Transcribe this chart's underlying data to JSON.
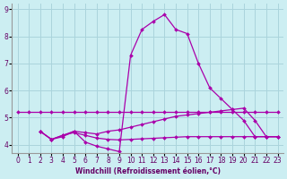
{
  "xlabel": "Windchill (Refroidissement éolien,°C)",
  "background_color": "#cceef2",
  "grid_color": "#aad4dc",
  "line_color": "#aa00aa",
  "xlim": [
    -0.5,
    23.5
  ],
  "ylim": [
    3.7,
    9.2
  ],
  "yticks": [
    4,
    5,
    6,
    7,
    8,
    9
  ],
  "xticks": [
    0,
    1,
    2,
    3,
    4,
    5,
    6,
    7,
    8,
    9,
    10,
    11,
    12,
    13,
    14,
    15,
    16,
    17,
    18,
    19,
    20,
    21,
    22,
    23
  ],
  "series": [
    {
      "x": [
        0,
        1,
        2,
        3,
        4,
        5,
        6,
        7,
        8,
        9,
        10,
        11,
        12,
        13,
        14,
        15,
        16,
        17,
        18,
        19,
        20,
        21,
        22,
        23
      ],
      "y": [
        5.2,
        5.2,
        5.2,
        5.2,
        5.2,
        5.2,
        5.2,
        5.2,
        5.2,
        5.2,
        5.2,
        5.2,
        5.2,
        5.2,
        5.2,
        5.2,
        5.2,
        5.2,
        5.2,
        5.2,
        5.2,
        5.2,
        5.2,
        5.2
      ]
    },
    {
      "x": [
        2,
        3,
        4,
        5,
        6,
        7,
        8,
        9,
        10,
        11,
        12,
        13,
        14,
        15,
        16,
        17,
        18,
        19,
        20,
        21,
        22,
        23
      ],
      "y": [
        4.5,
        4.2,
        4.3,
        4.5,
        4.1,
        3.95,
        3.85,
        3.75,
        7.3,
        8.25,
        8.55,
        8.8,
        8.25,
        8.1,
        7.0,
        6.1,
        5.7,
        5.3,
        4.9,
        4.3,
        4.3,
        4.3
      ]
    },
    {
      "x": [
        2,
        3,
        4,
        5,
        6,
        7,
        8,
        9,
        10,
        11,
        12,
        13,
        14,
        15,
        16,
        17,
        18,
        19,
        20,
        21,
        22,
        23
      ],
      "y": [
        4.5,
        4.2,
        4.35,
        4.5,
        4.45,
        4.4,
        4.5,
        4.55,
        4.65,
        4.75,
        4.85,
        4.95,
        5.05,
        5.1,
        5.15,
        5.2,
        5.25,
        5.3,
        5.35,
        4.9,
        4.3,
        4.3
      ]
    },
    {
      "x": [
        2,
        3,
        4,
        5,
        6,
        7,
        8,
        9,
        10,
        11,
        12,
        13,
        14,
        15,
        16,
        17,
        18,
        19,
        20,
        21,
        22,
        23
      ],
      "y": [
        4.5,
        4.2,
        4.35,
        4.45,
        4.35,
        4.25,
        4.2,
        4.18,
        4.2,
        4.22,
        4.24,
        4.26,
        4.28,
        4.3,
        4.3,
        4.3,
        4.3,
        4.3,
        4.3,
        4.3,
        4.3,
        4.3
      ]
    }
  ]
}
